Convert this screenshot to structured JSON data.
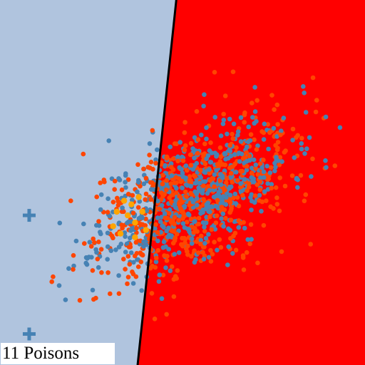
{
  "label": "11 Poisons",
  "colors": {
    "region_left": "#b0c4de",
    "region_right": "#ff0000",
    "boundary": "#000000",
    "class_blue": "#4682b4",
    "class_orange": "#ff4500",
    "poison": "#ffa500",
    "marker_plus": "#4682b4"
  },
  "chart_data": {
    "type": "scatter",
    "title": "",
    "xlim": [
      0,
      1
    ],
    "ylim": [
      0,
      1
    ],
    "grid": false,
    "decision_boundary": {
      "top_x": 0.483,
      "bottom_x": 0.377
    },
    "classes": [
      {
        "key": "blue",
        "count": 620,
        "seed": 11,
        "center": [
          0.53,
          0.47
        ],
        "spread": [
          0.13,
          0.1
        ],
        "correlation": 0.55
      },
      {
        "key": "orange",
        "count": 620,
        "seed": 29,
        "center": [
          0.52,
          0.45
        ],
        "spread": [
          0.14,
          0.11
        ],
        "correlation": 0.5
      }
    ],
    "poison_points": [
      [
        0.31,
        0.38
      ],
      [
        0.33,
        0.36
      ],
      [
        0.35,
        0.41
      ],
      [
        0.37,
        0.39
      ],
      [
        0.39,
        0.42
      ],
      [
        0.36,
        0.44
      ],
      [
        0.34,
        0.45
      ],
      [
        0.38,
        0.46
      ],
      [
        0.4,
        0.37
      ],
      [
        0.32,
        0.42
      ],
      [
        0.37,
        0.35
      ]
    ],
    "plus_markers": [
      [
        0.08,
        0.41
      ],
      [
        0.08,
        0.085
      ]
    ]
  }
}
